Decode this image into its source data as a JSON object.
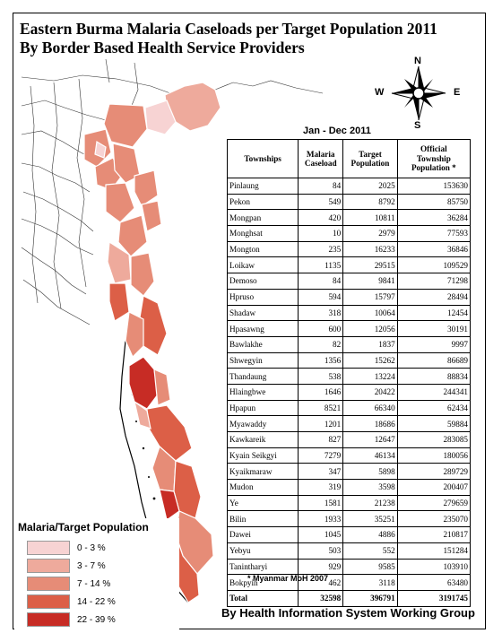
{
  "title_lines": [
    "Eastern Burma Malaria Caseloads per Target Population 2011",
    "By Border Based Health Service Providers"
  ],
  "compass": {
    "n": "N",
    "s": "S",
    "e": "E",
    "w": "W"
  },
  "table": {
    "period": "Jan - Dec 2011",
    "headers": {
      "townships": "Townships",
      "malaria": [
        "Malaria",
        "Caseload"
      ],
      "target": [
        "Target",
        "Population"
      ],
      "official": [
        "Official",
        "Township",
        "Population *"
      ]
    },
    "rows": [
      {
        "township": "Pinlaung",
        "malaria": "84",
        "target": "2025",
        "official": "153630"
      },
      {
        "township": "Pekon",
        "malaria": "549",
        "target": "8792",
        "official": "85750"
      },
      {
        "township": "Mongpan",
        "malaria": "420",
        "target": "10811",
        "official": "36284"
      },
      {
        "township": "Monghsat",
        "malaria": "10",
        "target": "2979",
        "official": "77593"
      },
      {
        "township": "Mongton",
        "malaria": "235",
        "target": "16233",
        "official": "36846"
      },
      {
        "township": "Loikaw",
        "malaria": "1135",
        "target": "29515",
        "official": "109529"
      },
      {
        "township": "Demoso",
        "malaria": "84",
        "target": "9841",
        "official": "71298"
      },
      {
        "township": "Hpruso",
        "malaria": "594",
        "target": "15797",
        "official": "28494"
      },
      {
        "township": "Shadaw",
        "malaria": "318",
        "target": "10064",
        "official": "12454"
      },
      {
        "township": "Hpasawng",
        "malaria": "600",
        "target": "12056",
        "official": "30191"
      },
      {
        "township": "Bawlakhe",
        "malaria": "82",
        "target": "1837",
        "official": "9997"
      },
      {
        "township": "Shwegyin",
        "malaria": "1356",
        "target": "15262",
        "official": "86689"
      },
      {
        "township": "Thandaung",
        "malaria": "538",
        "target": "13224",
        "official": "88834"
      },
      {
        "township": "Hlaingbwe",
        "malaria": "1646",
        "target": "20422",
        "official": "244341"
      },
      {
        "township": "Hpapun",
        "malaria": "8521",
        "target": "66340",
        "official": "62434"
      },
      {
        "township": "Myawaddy",
        "malaria": "1201",
        "target": "18686",
        "official": "59884"
      },
      {
        "township": "Kawkareik",
        "malaria": "827",
        "target": "12647",
        "official": "283085"
      },
      {
        "township": "Kyain Seikgyi",
        "malaria": "7279",
        "target": "46134",
        "official": "180056"
      },
      {
        "township": "Kyaikmaraw",
        "malaria": "347",
        "target": "5898",
        "official": "289729"
      },
      {
        "township": "Mudon",
        "malaria": "319",
        "target": "3598",
        "official": "200407"
      },
      {
        "township": "Ye",
        "malaria": "1581",
        "target": "21238",
        "official": "279659"
      },
      {
        "township": "Bilin",
        "malaria": "1933",
        "target": "35251",
        "official": "235070"
      },
      {
        "township": "Dawei",
        "malaria": "1045",
        "target": "4886",
        "official": "210817"
      },
      {
        "township": "Yebyu",
        "malaria": "503",
        "target": "552",
        "official": "151284"
      },
      {
        "township": "Tanintharyi",
        "malaria": "929",
        "target": "9585",
        "official": "103910"
      },
      {
        "township": "Bokpyin",
        "malaria": "462",
        "target": "3118",
        "official": "63480"
      }
    ],
    "total": {
      "label": "Total",
      "malaria": "32598",
      "target": "396791",
      "official": "3191745"
    }
  },
  "footnote": "* Myanmar MoH 2007",
  "credit": "By Health Information System Working Group",
  "legend": {
    "title": "Malaria/Target Population",
    "classes": [
      {
        "label": "0 - 3 %",
        "color": "#f7d3d3"
      },
      {
        "label": "3 - 7 %",
        "color": "#eeaa9c"
      },
      {
        "label": "7 - 14 %",
        "color": "#e68c77"
      },
      {
        "label": "14 - 22 %",
        "color": "#dc5f47"
      },
      {
        "label": "22 - 39 %",
        "color": "#c72c25"
      }
    ]
  }
}
